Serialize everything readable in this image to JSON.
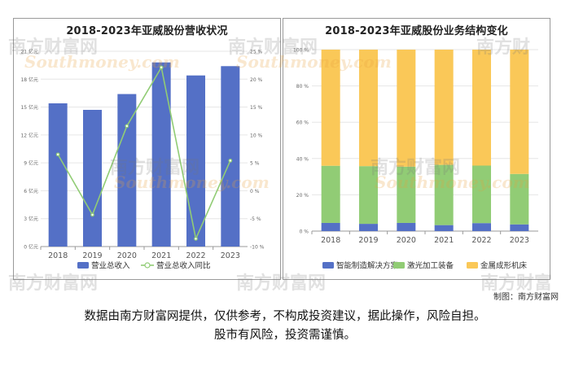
{
  "chart_data": [
    {
      "type": "bar",
      "title": "2018-2023年亚威股份营收状况",
      "categories": [
        "2018",
        "2019",
        "2020",
        "2021",
        "2022",
        "2023"
      ],
      "series": [
        {
          "name": "营业总收入",
          "kind": "bar",
          "axis": "left",
          "color": "#5470c6",
          "values": [
            15.4,
            14.7,
            16.4,
            19.8,
            18.4,
            19.4
          ]
        },
        {
          "name": "营业总收入同比",
          "kind": "line",
          "axis": "right",
          "color": "#91cc75",
          "values": [
            6.5,
            -4.3,
            11.6,
            22.1,
            -8.6,
            5.4
          ]
        }
      ],
      "y_left": {
        "ticks": [
          "0 亿元",
          "3 亿元",
          "6 亿元",
          "9 亿元",
          "12 亿元",
          "15 亿元",
          "18 亿元",
          "21 亿元"
        ],
        "ylim": [
          0,
          21
        ]
      },
      "y_right": {
        "ticks": [
          "-10 %",
          "-5 %",
          "0 %",
          "5 %",
          "10 %",
          "15 %",
          "20 %",
          "25 %"
        ],
        "ylim": [
          -10,
          25
        ]
      },
      "legend_position": "bottom"
    },
    {
      "type": "bar",
      "stacked": true,
      "title": "2018-2023年亚威股份业务结构变化",
      "categories": [
        "2018",
        "2019",
        "2020",
        "2021",
        "2022",
        "2023"
      ],
      "series": [
        {
          "name": "智能制造解决方案",
          "color": "#5470c6",
          "values": [
            4.5,
            4.0,
            4.5,
            3.3,
            4.4,
            3.7
          ]
        },
        {
          "name": "激光加工装备",
          "color": "#91cc75",
          "values": [
            31.5,
            31.8,
            31.0,
            33.2,
            31.7,
            27.8
          ]
        },
        {
          "name": "金属成形机床",
          "color": "#fac858",
          "values": [
            64.0,
            64.2,
            64.5,
            63.5,
            63.9,
            68.5
          ]
        }
      ],
      "y_axis": {
        "ticks": [
          "0 %",
          "20 %",
          "40 %",
          "60 %",
          "80 %",
          "100 %"
        ],
        "ylim": [
          0,
          100
        ]
      },
      "legend_position": "bottom"
    }
  ],
  "credit": "制图：南方财富网",
  "disclaimer": {
    "line1": "数据由南方财富网提供，仅供参考，不构成投资建议，据此操作，风险自担。",
    "line2": "股市有风险，投资需谨慎。"
  },
  "watermark": {
    "cn": "南方财富网",
    "en": "Southmoney.com"
  }
}
